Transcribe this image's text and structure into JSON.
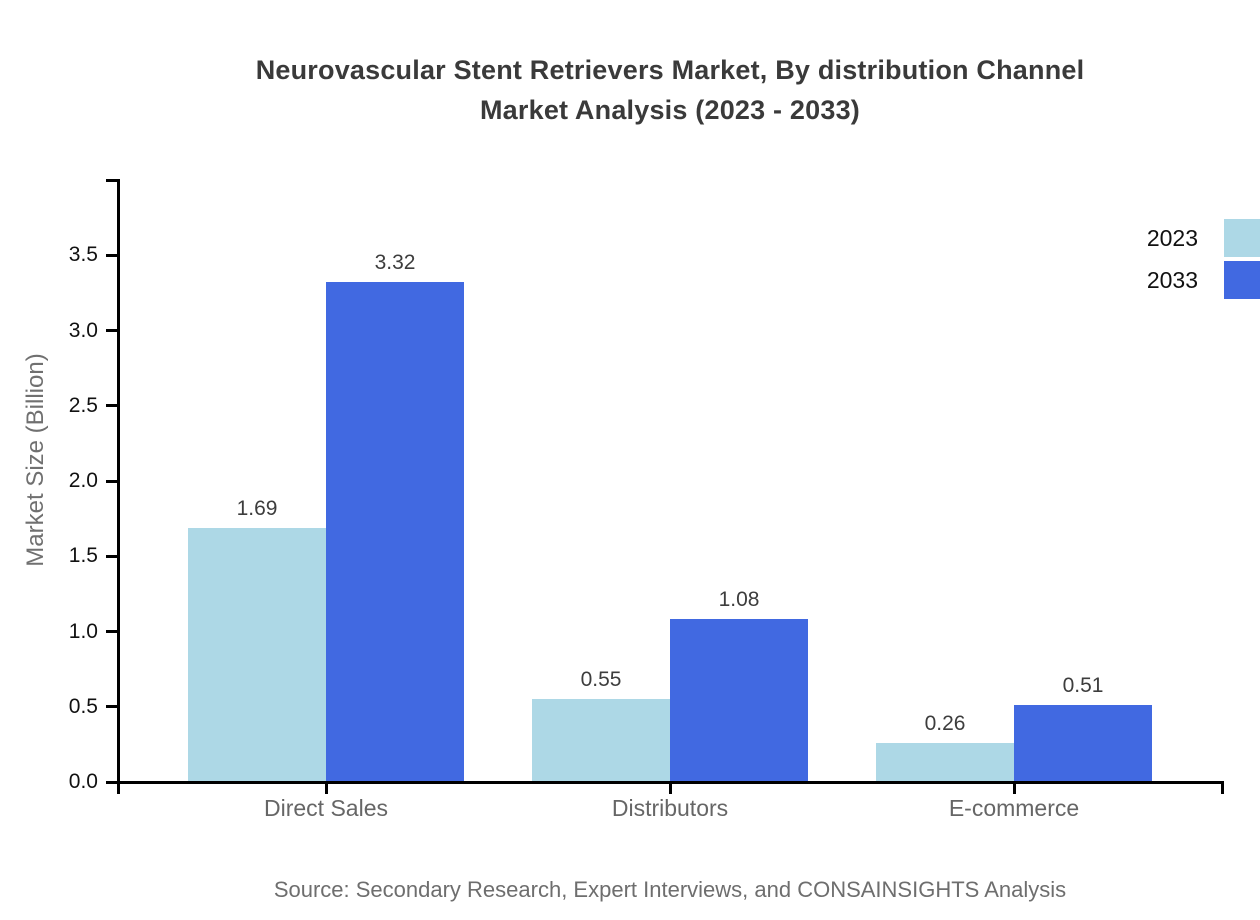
{
  "title": {
    "line1": "Neurovascular Stent Retrievers Market, By distribution Channel",
    "line2": "Market Analysis (2023 - 2033)"
  },
  "source": "Source: Secondary Research, Expert Interviews, and CONSAINSIGHTS Analysis",
  "colors": {
    "series_2023": "#ADD8E6",
    "series_2033": "#4169E1",
    "title_text": "#3a3a3a",
    "tick_text": "#111111",
    "muted_text": "#6e6e6e",
    "spine": "#000000"
  },
  "legend": {
    "position": "top-right",
    "items": [
      {
        "label": "2023",
        "color": "#ADD8E6"
      },
      {
        "label": "2033",
        "color": "#4169E1"
      }
    ]
  },
  "chart_data": {
    "type": "bar",
    "title": "Neurovascular Stent Retrievers Market, By distribution Channel Market Analysis (2023 - 2033)",
    "categories": [
      "Direct Sales",
      "Distributors",
      "E-commerce"
    ],
    "series": [
      {
        "name": "2023",
        "color": "#ADD8E6",
        "values": [
          1.69,
          0.55,
          0.26
        ],
        "labels": [
          "1.69",
          "0.55",
          "0.26"
        ]
      },
      {
        "name": "2033",
        "color": "#4169E1",
        "values": [
          3.32,
          1.08,
          0.51
        ],
        "labels": [
          "3.32",
          "1.08",
          "0.51"
        ]
      }
    ],
    "xlabel": "",
    "ylabel": "Market Size (Billion)",
    "ylim": [
      0,
      4.0
    ],
    "yticks": [
      "0.0",
      "0.5",
      "1.0",
      "1.5",
      "2.0",
      "2.5",
      "3.0",
      "3.5"
    ],
    "grid": false,
    "legend_position": "top-right"
  }
}
